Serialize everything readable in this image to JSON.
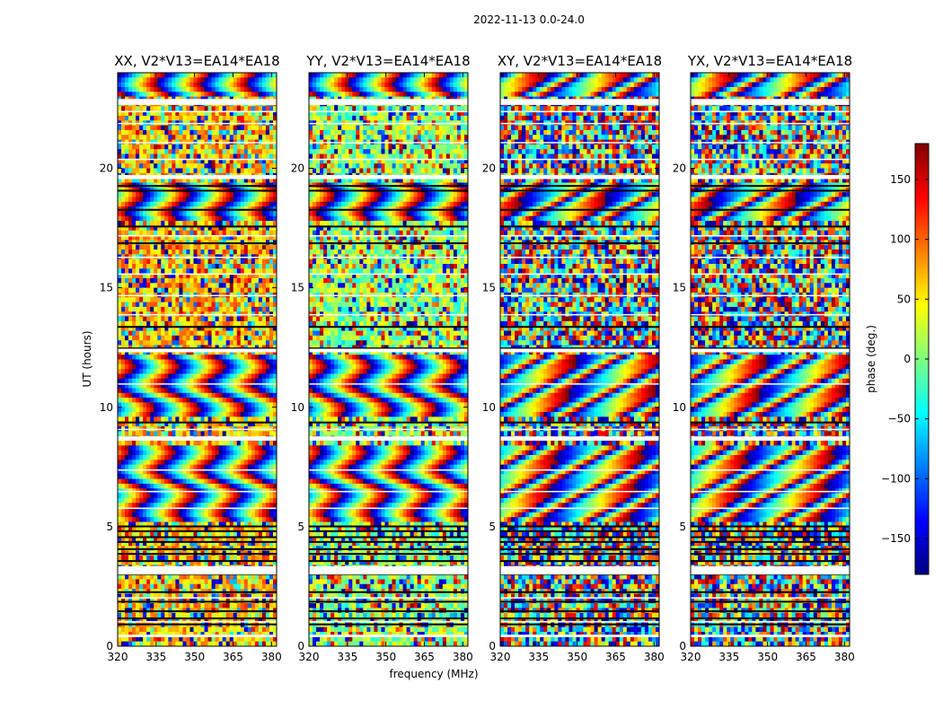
{
  "chart_data": {
    "type": "heatmap",
    "suptitle": "2022-11-13 0.0-24.0",
    "xlabel": "frequency (MHz)",
    "ylabel": "UT (hours)",
    "xlim": [
      320,
      382
    ],
    "ylim": [
      0,
      24
    ],
    "xticks": [
      320,
      335,
      350,
      365,
      380
    ],
    "yticks": [
      0,
      5,
      10,
      15,
      20
    ],
    "panels": [
      {
        "title": "XX, V2*V13=EA14*EA18",
        "base": "warm"
      },
      {
        "title": "YY, V2*V13=EA14*EA18",
        "base": "green"
      },
      {
        "title": "XY, V2*V13=EA14*EA18",
        "base": "noise"
      },
      {
        "title": "YX, V2*V13=EA14*EA18",
        "base": "noise"
      }
    ],
    "colorbar": {
      "label": "phase (deg.)",
      "range": [
        -180,
        180
      ],
      "ticks": [
        -150,
        -100,
        -50,
        0,
        50,
        100,
        150
      ],
      "colormap": "jet",
      "colors": [
        "#00007f",
        "#0000ff",
        "#007fff",
        "#00ffff",
        "#7fff7f",
        "#ffff00",
        "#ff7f00",
        "#ff0000",
        "#7f0000"
      ]
    },
    "flagged_ut_intervals": [
      [
        0.38,
        0.48
      ],
      [
        3.0,
        3.35
      ],
      [
        8.6,
        8.78
      ],
      [
        12.3,
        12.45
      ],
      [
        19.55,
        19.72
      ],
      [
        22.65,
        22.9
      ]
    ]
  }
}
